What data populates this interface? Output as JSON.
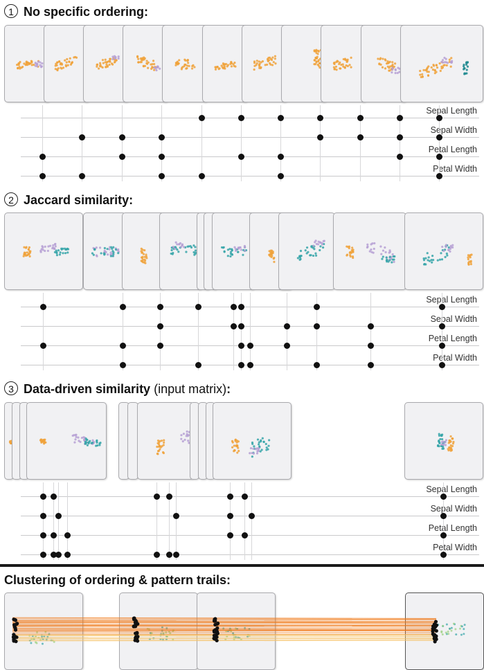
{
  "sections": [
    {
      "number": "1",
      "title": "No specific ordering:",
      "subtitle": ""
    },
    {
      "number": "2",
      "title": "Jaccard similarity:",
      "subtitle": ""
    },
    {
      "number": "3",
      "title": "Data-driven similarity",
      "subtitle": " (input matrix)",
      "suffix": ":"
    }
  ],
  "bottom_title": "Clustering of ordering & pattern trails:",
  "dimensions": [
    "Sepal Length",
    "Sepal Width",
    "Petal Length",
    "Petal Width"
  ],
  "colors": {
    "orange": "#f0a23a",
    "purple": "#b6a0d4",
    "teal": "#35a5a8",
    "dark_teal": "#1f8a8f",
    "trail": "#f07a1a",
    "green": "#9ad07e"
  }
}
